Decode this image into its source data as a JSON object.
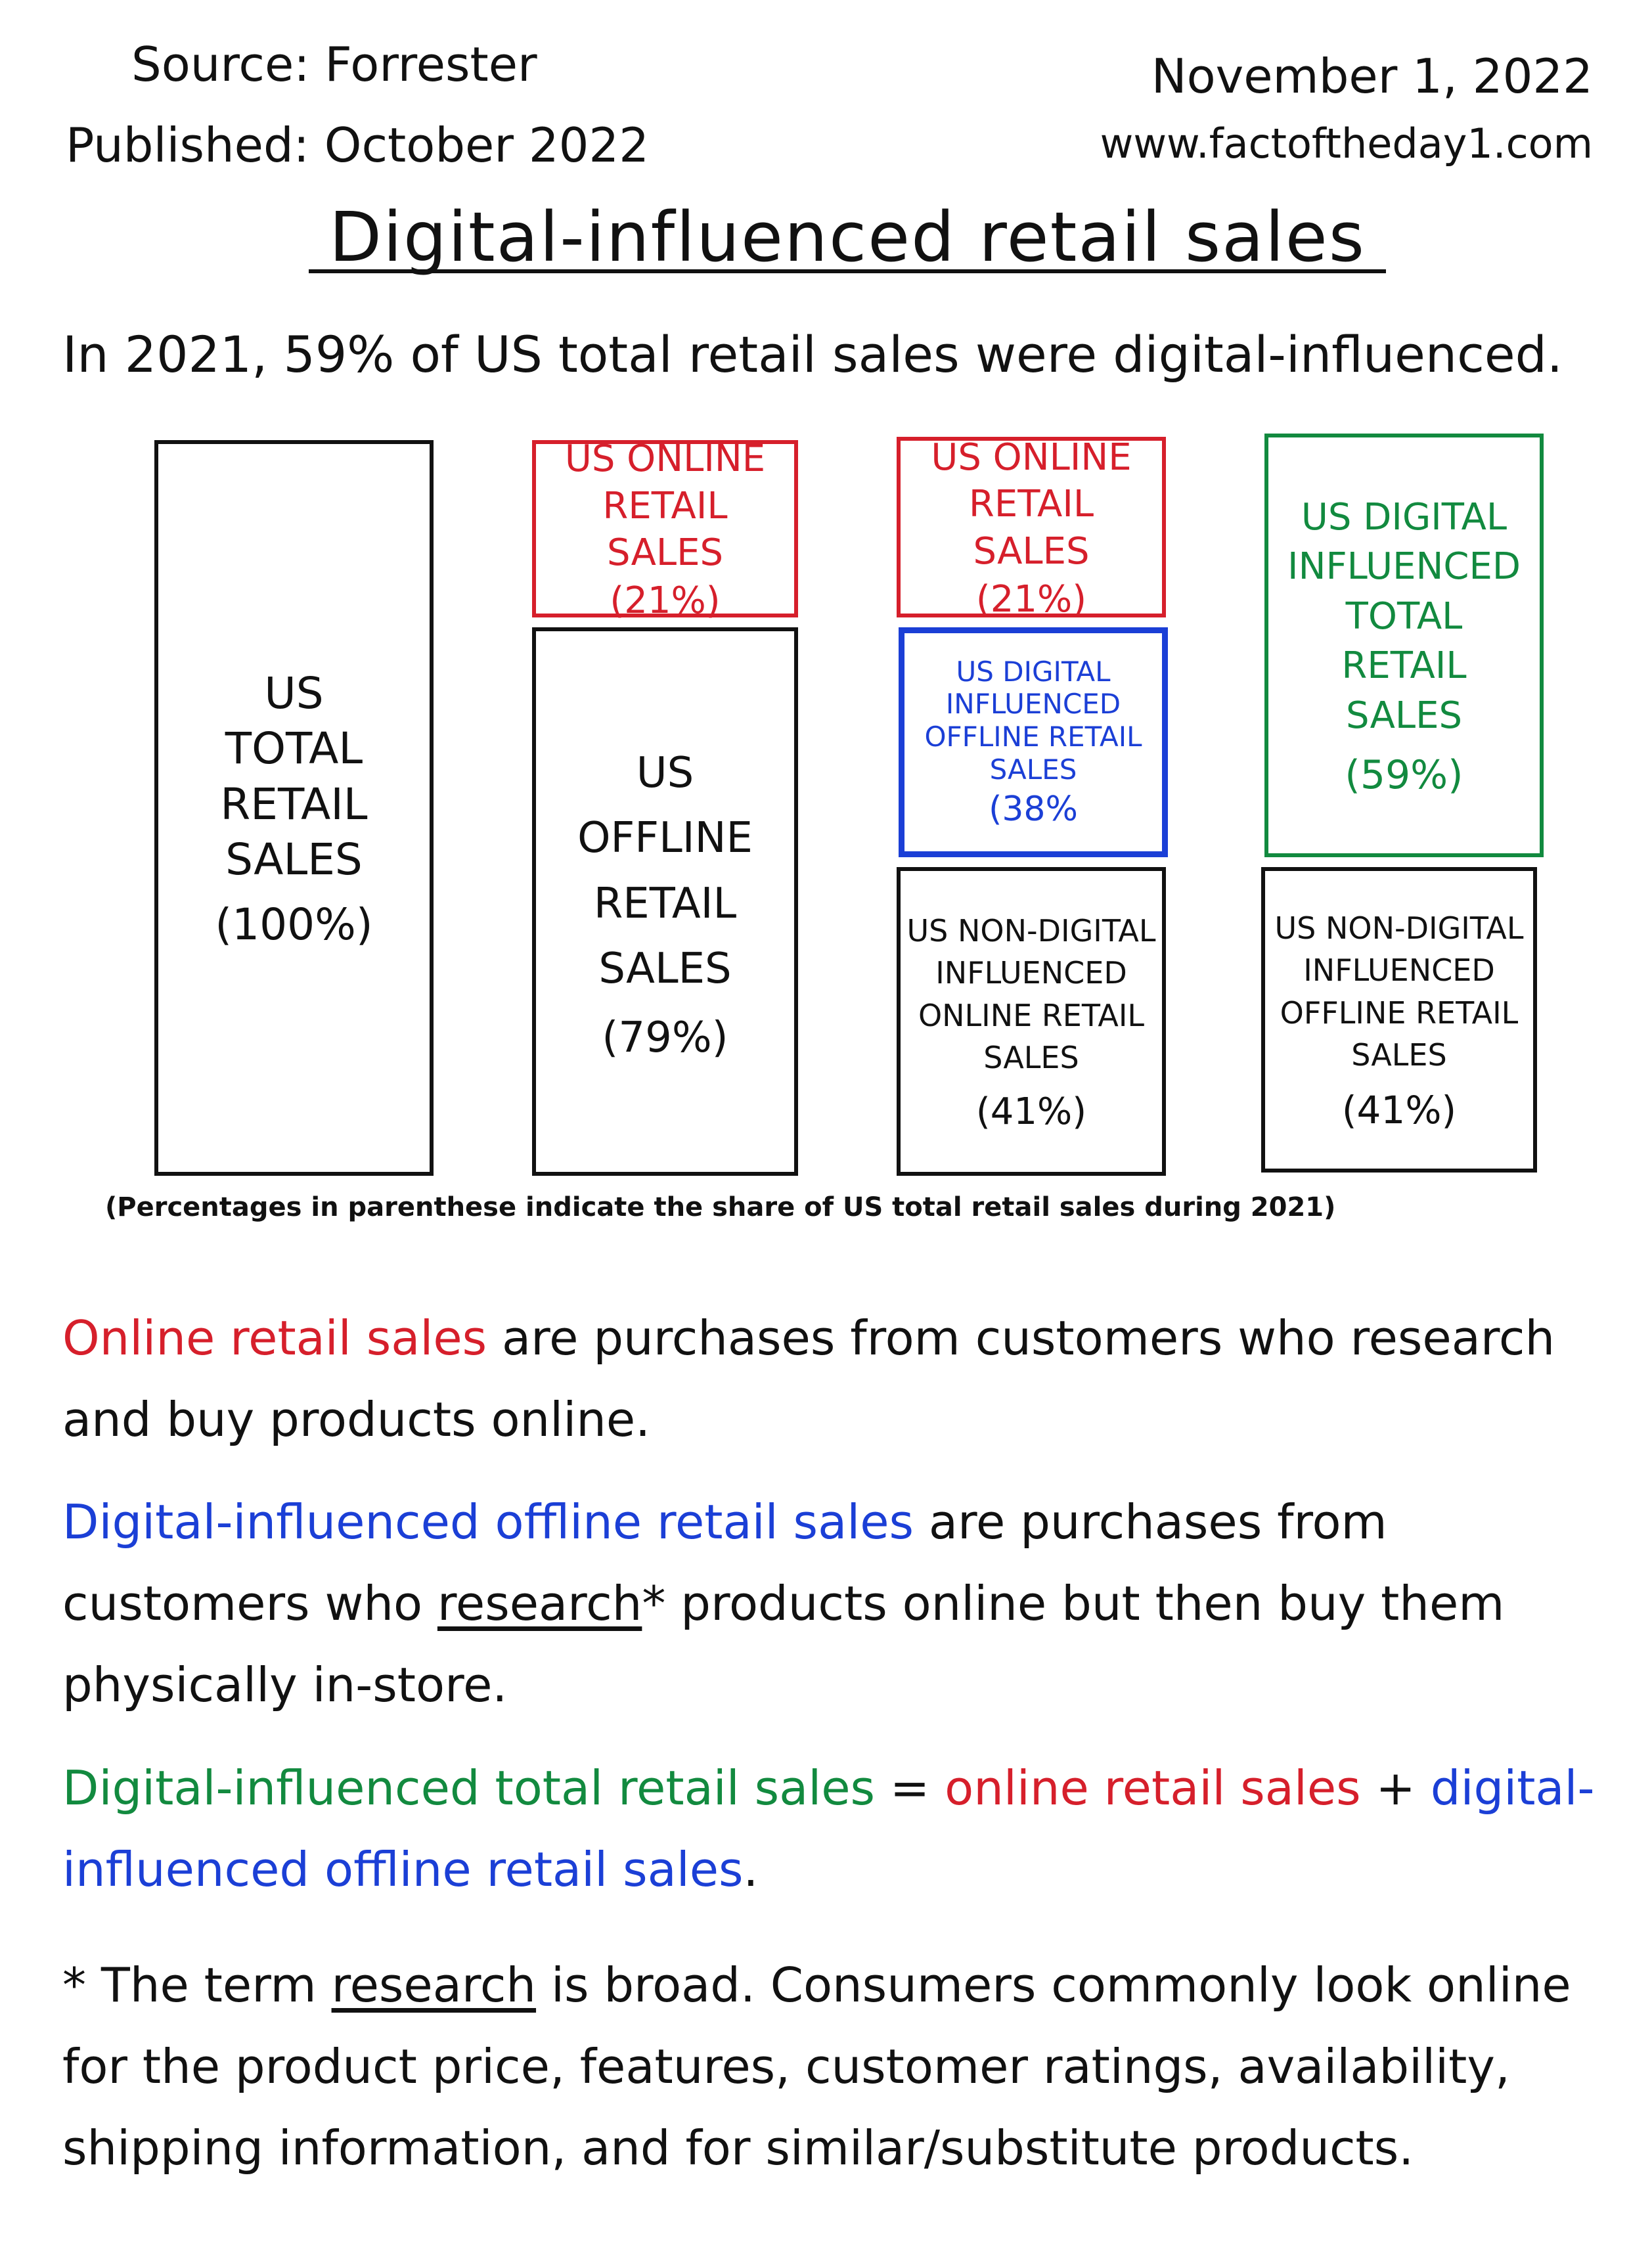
{
  "header": {
    "source": "Source: Forrester",
    "published": "Published: October 2022",
    "date": "November 1, 2022",
    "website": "www.factoftheday1.com"
  },
  "title": "Digital-influenced retail sales",
  "intro": "In 2021, 59% of US total retail sales were digital-influenced.",
  "diagram": {
    "col1": {
      "label": "US TOTAL RETAIL SALES",
      "pct": "(100%)"
    },
    "col2": {
      "top": {
        "label": "US ONLINE RETAIL SALES",
        "pct": "(21%)"
      },
      "bottom": {
        "label": "US OFFLINE RETAIL SALES",
        "pct": "(79%)"
      }
    },
    "col3": {
      "top": {
        "label": "US ONLINE RETAIL SALES",
        "pct": "(21%)"
      },
      "middle": {
        "label": "US DIGITAL INFLUENCED OFFLINE RETAIL SALES",
        "pct": "(38%"
      },
      "bottom": {
        "label": "US NON-DIGITAL INFLUENCED ONLINE RETAIL SALES",
        "pct": "(41%)"
      }
    },
    "col4": {
      "top": {
        "label": "US DIGITAL INFLUENCED TOTAL RETAIL SALES",
        "pct": "(59%)"
      },
      "bottom": {
        "label": "US NON-DIGITAL INFLUENCED OFFLINE RETAIL SALES",
        "pct": "(41%)"
      }
    },
    "note": "(Percentages in parenthese indicate the share of US total retail sales during 2021)"
  },
  "definitions": {
    "online": {
      "term": "Online retail sales",
      "text": " are purchases from customers who research and buy products online."
    },
    "digital_offline": {
      "term": "Digital-influenced offline retail sales",
      "text_a": " are purchases from customers who ",
      "underlined": "research",
      "text_b": "* products online but then buy them physically in-store."
    },
    "formula": {
      "term": "Digital-influenced total retail sales",
      "equals": " = ",
      "part1": "online retail sales",
      "plus": " + ",
      "part2": "digital-influenced offline retail sales",
      "end": "."
    },
    "footnote": {
      "prefix": "* The term ",
      "underlined": "research",
      "text": " is broad. Consumers commonly look online for the product price, features, customer ratings, availability, shipping information, and for similar/substitute products."
    }
  },
  "colors": {
    "online": "#d61f2b",
    "digital_offline": "#1b3fd6",
    "digital_total": "#128a3f",
    "ink": "#111111"
  }
}
